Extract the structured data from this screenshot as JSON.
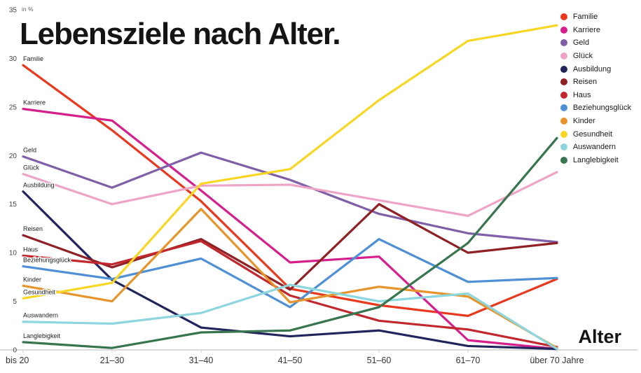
{
  "title": "Lebensziele nach Alter.",
  "y_axis": {
    "unit": "in %",
    "ticks": [
      35,
      30,
      25,
      20,
      15,
      10,
      5,
      0
    ]
  },
  "x_axis": {
    "label": "Alter"
  },
  "chart_data": {
    "type": "line",
    "title": "Lebensziele nach Alter.",
    "xlabel": "Alter",
    "ylabel": "in %",
    "ylim": [
      0,
      35
    ],
    "grid": false,
    "legend_position": "top-right",
    "categories": [
      "bis 20",
      "21–30",
      "31–40",
      "41–50",
      "51–60",
      "61–70",
      "über 70 Jahre"
    ],
    "series": [
      {
        "name": "Familie",
        "color": "#e8391f",
        "values": [
          29.3,
          22.6,
          15.3,
          6.3,
          4.6,
          3.5,
          7.3
        ]
      },
      {
        "name": "Karriere",
        "color": "#d41f8d",
        "values": [
          24.8,
          23.6,
          16.4,
          9.0,
          9.6,
          1.0,
          0.1
        ]
      },
      {
        "name": "Geld",
        "color": "#7e5fa8",
        "values": [
          19.9,
          16.7,
          20.3,
          17.5,
          14.0,
          12.0,
          11.1
        ]
      },
      {
        "name": "Glück",
        "color": "#eda4c5",
        "values": [
          18.1,
          15.0,
          16.9,
          17.0,
          15.4,
          13.8,
          18.3
        ]
      },
      {
        "name": "Ausbildung",
        "color": "#20265c",
        "values": [
          16.3,
          7.2,
          2.3,
          1.4,
          2.0,
          0.4,
          0.1
        ]
      },
      {
        "name": "Reisen",
        "color": "#8f2025",
        "values": [
          11.8,
          8.5,
          11.4,
          6.2,
          15.0,
          10.0,
          11.0
        ]
      },
      {
        "name": "Haus",
        "color": "#c1272d",
        "values": [
          9.7,
          8.8,
          11.2,
          5.6,
          3.0,
          2.1,
          0.3
        ]
      },
      {
        "name": "Beziehungsglück",
        "color": "#4e8fd5",
        "values": [
          8.6,
          7.3,
          9.4,
          4.4,
          11.4,
          7.0,
          7.4
        ]
      },
      {
        "name": "Kinder",
        "color": "#e6952c",
        "values": [
          6.6,
          5.0,
          14.5,
          4.9,
          6.5,
          5.5,
          0.2
        ]
      },
      {
        "name": "Gesundheit",
        "color": "#f7d724",
        "values": [
          5.3,
          6.9,
          17.1,
          18.6,
          25.7,
          31.8,
          33.4
        ]
      },
      {
        "name": "Auswandern",
        "color": "#8ed6dd",
        "values": [
          2.9,
          2.7,
          3.8,
          6.7,
          5.0,
          5.8,
          0.1
        ]
      },
      {
        "name": "Langlebigkeit",
        "color": "#37754e",
        "values": [
          0.8,
          0.2,
          1.8,
          2.0,
          4.4,
          11.0,
          21.8
        ]
      }
    ]
  }
}
